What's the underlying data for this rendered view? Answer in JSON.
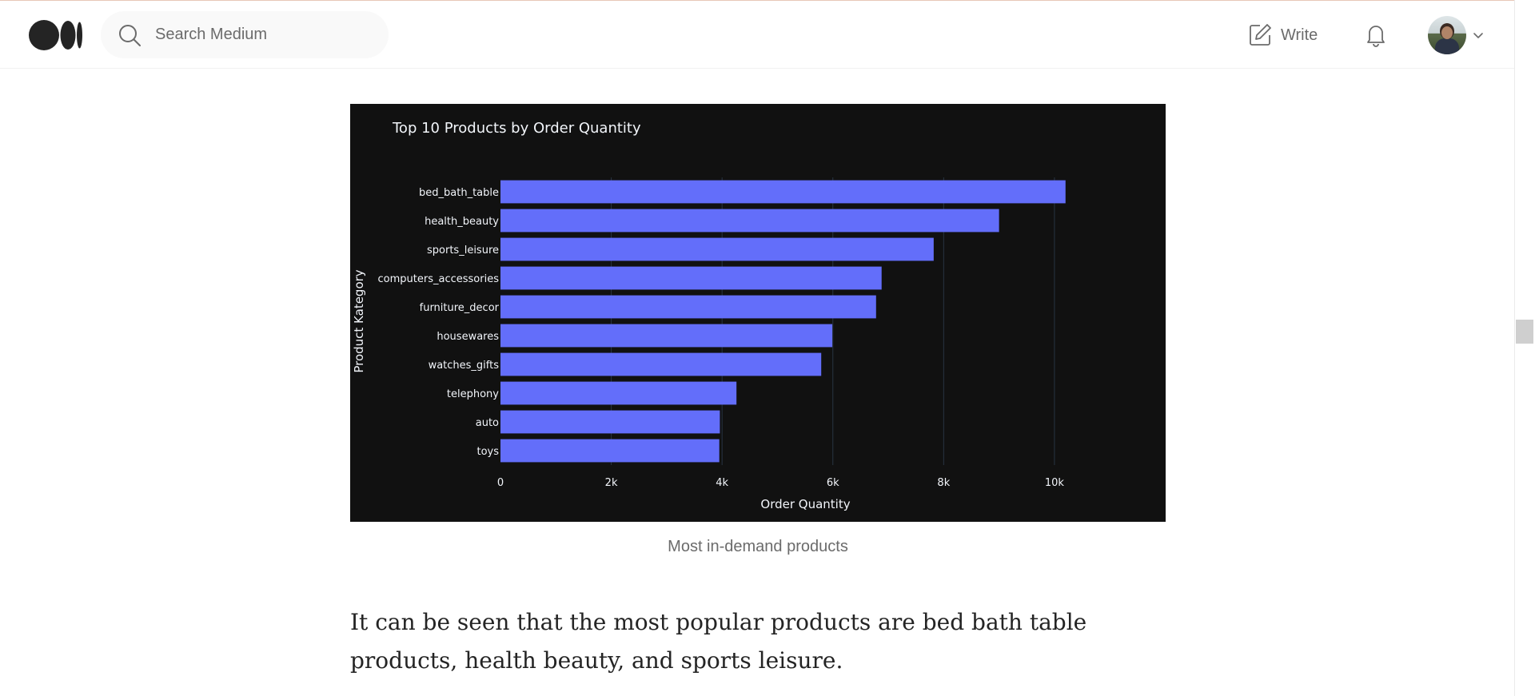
{
  "header": {
    "search_placeholder": "Search Medium",
    "write_label": "Write"
  },
  "article": {
    "figure_caption": "Most in-demand products",
    "paragraph": "It can be seen that the most popular products are bed bath table products, health beauty, and sports leisure."
  },
  "colors": {
    "bar": "#636efa",
    "chart_bg": "#111111",
    "grid": "#283442",
    "chart_text": "#f2f5fa"
  },
  "chart_data": {
    "type": "bar",
    "orientation": "horizontal",
    "title": "Top 10 Products by Order Quantity",
    "xlabel": "Order Quantity",
    "ylabel": "Product Kategory",
    "categories": [
      "bed_bath_table",
      "health_beauty",
      "sports_leisure",
      "computers_accessories",
      "furniture_decor",
      "housewares",
      "watches_gifts",
      "telephony",
      "auto",
      "toys"
    ],
    "values": [
      10200,
      9000,
      7820,
      6880,
      6780,
      5990,
      5790,
      4260,
      3960,
      3950
    ],
    "xlim": [
      0,
      11300
    ],
    "xticks": [
      0,
      2000,
      4000,
      6000,
      8000,
      10000
    ],
    "xtick_labels": [
      "0",
      "2k",
      "4k",
      "6k",
      "8k",
      "10k"
    ],
    "grid": true
  }
}
